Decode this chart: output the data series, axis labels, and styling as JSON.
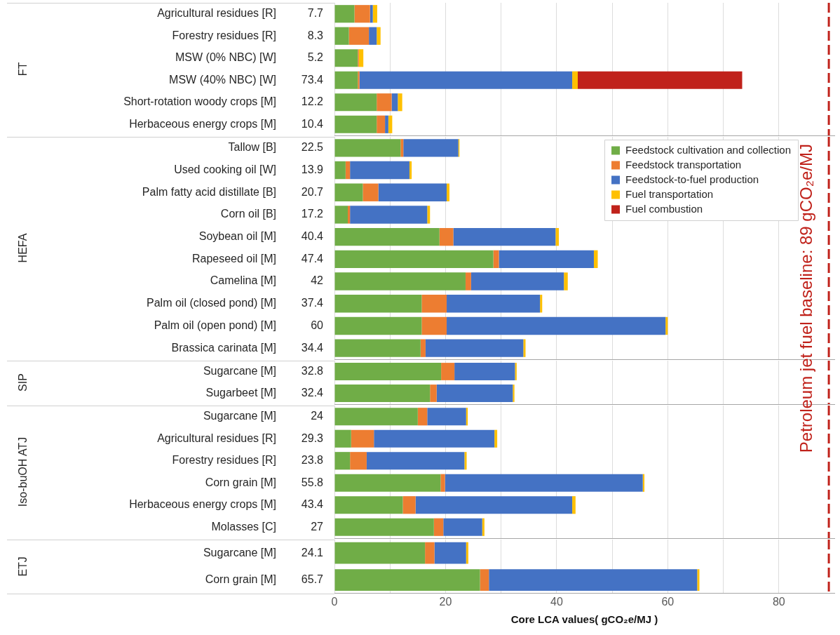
{
  "chart_data": [
    {
      "type": "bar",
      "orientation": "horizontal",
      "stacked": true,
      "ylabel": "FT",
      "grid": "x",
      "tick_labels": "y",
      "categories": [
        "Agricultural residues [R]",
        "Forestry residues [R]",
        "MSW (0% NBC) [W]",
        "MSW (40% NBC) [W]",
        "Short-rotation woody crops [M]",
        "Herbaceous energy crops [M]"
      ],
      "totals": [
        "7.7",
        "8.3",
        "5.2",
        "73.4",
        "12.2",
        "10.4"
      ],
      "series": [
        {
          "color": "#70ad47",
          "values": [
            3.6,
            2.6,
            4.2,
            4.2,
            7.6,
            7.6
          ]
        },
        {
          "color": "#ed7d31",
          "values": [
            2.8,
            3.6,
            0.2,
            0.3,
            2.7,
            1.5
          ]
        },
        {
          "color": "#4472c4",
          "values": [
            0.5,
            1.4,
            null,
            38.3,
            1.1,
            0.6
          ]
        },
        {
          "color": "#ffc000",
          "values": [
            0.8,
            0.7,
            0.8,
            1.0,
            0.8,
            0.7
          ]
        },
        {
          "color": "#c0221b",
          "values": [
            null,
            null,
            null,
            29.6,
            null,
            null
          ]
        }
      ],
      "xlim": [
        0,
        90
      ],
      "xticks": [
        0,
        {
          "value": 10,
          "label": null
        },
        20,
        {
          "value": 30,
          "label": null
        },
        40,
        {
          "value": 50,
          "label": null
        },
        60,
        {
          "value": 70,
          "label": null
        },
        80
      ],
      "ref_lines": [
        {
          "axis": "x",
          "value": 89,
          "color": "#c0221b",
          "line_style": "dashed"
        }
      ]
    },
    {
      "type": "bar",
      "orientation": "horizontal",
      "stacked": true,
      "ylabel": "HEFA",
      "grid": "x",
      "tick_labels": "y",
      "legend": "top right",
      "categories": [
        "Tallow [B]",
        "Used cooking oil [W]",
        "Palm fatty acid distillate [B]",
        "Corn oil [B]",
        "Soybean oil [M]",
        "Rapeseed oil [M]",
        "Camelina [M]",
        "Palm oil (closed pond) [M]",
        "Palm oil (open pond) [M]",
        "Brassica carinata [M]"
      ],
      "totals": [
        "22.5",
        "13.9",
        "20.7",
        "17.2",
        "40.4",
        "47.4",
        "42",
        "37.4",
        "60",
        "34.4"
      ],
      "series": [
        {
          "name": "Feedstock cultivation and collection",
          "color": "#70ad47",
          "values": [
            11.9,
            2.0,
            5.1,
            2.4,
            18.9,
            28.6,
            23.6,
            15.7,
            15.7,
            15.5
          ]
        },
        {
          "name": "Feedstock transportation",
          "color": "#ed7d31",
          "values": [
            0.5,
            0.8,
            2.8,
            0.4,
            2.5,
            1.0,
            1.0,
            4.5,
            4.5,
            0.9
          ]
        },
        {
          "name": "Feedstock-to-fuel production",
          "color": "#4472c4",
          "values": [
            9.9,
            10.7,
            12.3,
            13.9,
            18.4,
            17.1,
            16.7,
            16.8,
            39.4,
            17.6
          ]
        },
        {
          "name": "Fuel transportation",
          "color": "#ffc000",
          "values": [
            0.2,
            0.4,
            0.5,
            0.5,
            0.6,
            0.7,
            0.7,
            0.4,
            0.4,
            0.4
          ]
        },
        {
          "name": "Fuel combustion",
          "color": "#c0221b",
          "values": [
            null,
            null,
            null,
            null,
            null,
            null,
            null,
            null,
            null,
            null
          ]
        }
      ],
      "xlim": [
        0,
        90
      ],
      "xticks": [
        0,
        {
          "value": 10,
          "label": null
        },
        20,
        {
          "value": 30,
          "label": null
        },
        40,
        {
          "value": 50,
          "label": null
        },
        60,
        {
          "value": 70,
          "label": null
        },
        80
      ],
      "ref_lines": [
        {
          "axis": "x",
          "value": 89,
          "color": "#c0221b",
          "line_style": "dashed",
          "label": "Petroleum jet fuel baseline: 89 gCO₂e/MJ"
        }
      ]
    },
    {
      "type": "bar",
      "orientation": "horizontal",
      "stacked": true,
      "ylabel": "SIP",
      "grid": "x",
      "tick_labels": "y",
      "categories": [
        "Sugarcane [M]",
        "Sugarbeet [M]"
      ],
      "totals": [
        "32.8",
        "32.4"
      ],
      "series": [
        {
          "color": "#70ad47",
          "values": [
            19.2,
            17.2
          ]
        },
        {
          "color": "#ed7d31",
          "values": [
            2.4,
            1.2
          ]
        },
        {
          "color": "#4472c4",
          "values": [
            10.9,
            13.7
          ]
        },
        {
          "color": "#ffc000",
          "values": [
            0.3,
            0.3
          ]
        },
        {
          "color": "#c0221b",
          "values": [
            null,
            null
          ]
        }
      ],
      "xlim": [
        0,
        90
      ],
      "xticks": [
        0,
        {
          "value": 10,
          "label": null
        },
        20,
        {
          "value": 30,
          "label": null
        },
        40,
        {
          "value": 50,
          "label": null
        },
        60,
        {
          "value": 70,
          "label": null
        },
        80
      ],
      "ref_lines": [
        {
          "axis": "x",
          "value": 89,
          "color": "#c0221b",
          "line_style": "dashed"
        }
      ]
    },
    {
      "type": "bar",
      "orientation": "horizontal",
      "stacked": true,
      "ylabel": "Iso-buOH ATJ",
      "grid": "x",
      "tick_labels": "y",
      "categories": [
        "Sugarcane [M]",
        "Agricultural residues [R]",
        "Forestry residues [R]",
        "Corn grain [M]",
        "Herbaceous energy crops [M]",
        "Molasses [C]"
      ],
      "totals": [
        "24",
        "29.3",
        "23.8",
        "55.8",
        "43.4",
        "27"
      ],
      "series": [
        {
          "color": "#70ad47",
          "values": [
            15.0,
            3.0,
            2.8,
            19.1,
            12.3,
            17.9
          ]
        },
        {
          "color": "#ed7d31",
          "values": [
            1.7,
            4.1,
            3.0,
            0.8,
            2.3,
            1.7
          ]
        },
        {
          "color": "#4472c4",
          "values": [
            7.0,
            21.7,
            17.6,
            35.6,
            28.2,
            7.0
          ]
        },
        {
          "color": "#ffc000",
          "values": [
            0.3,
            0.5,
            0.4,
            0.3,
            0.6,
            0.4
          ]
        },
        {
          "color": "#c0221b",
          "values": [
            null,
            null,
            null,
            null,
            null,
            null
          ]
        }
      ],
      "xlim": [
        0,
        90
      ],
      "xticks": [
        0,
        {
          "value": 10,
          "label": null
        },
        20,
        {
          "value": 30,
          "label": null
        },
        40,
        {
          "value": 50,
          "label": null
        },
        60,
        {
          "value": 70,
          "label": null
        },
        80
      ],
      "ref_lines": [
        {
          "axis": "x",
          "value": 89,
          "color": "#c0221b",
          "line_style": "dashed"
        }
      ]
    },
    {
      "type": "bar",
      "orientation": "horizontal",
      "stacked": true,
      "ylabel": "ETJ",
      "grid": "x",
      "xlabel": "Core LCA values( gCO₂e/MJ )",
      "categories": [
        "Sugarcane [M]",
        "Corn grain [M]"
      ],
      "totals": [
        "24.1",
        "65.7"
      ],
      "series": [
        {
          "color": "#70ad47",
          "values": [
            16.3,
            26.2
          ]
        },
        {
          "color": "#ed7d31",
          "values": [
            1.7,
            1.6
          ]
        },
        {
          "color": "#4472c4",
          "values": [
            5.7,
            37.5
          ]
        },
        {
          "color": "#ffc000",
          "values": [
            0.4,
            0.4
          ]
        },
        {
          "color": "#c0221b",
          "values": [
            null,
            null
          ]
        }
      ],
      "xlim": [
        0,
        90
      ],
      "xticks": [
        0,
        {
          "value": 10,
          "label": null
        },
        20,
        {
          "value": 30,
          "label": null
        },
        40,
        {
          "value": 50,
          "label": null
        },
        60,
        {
          "value": 70,
          "label": null
        },
        80
      ],
      "ref_lines": [
        {
          "axis": "x",
          "value": 89,
          "color": "#c0221b",
          "line_style": "dashed"
        }
      ]
    }
  ]
}
